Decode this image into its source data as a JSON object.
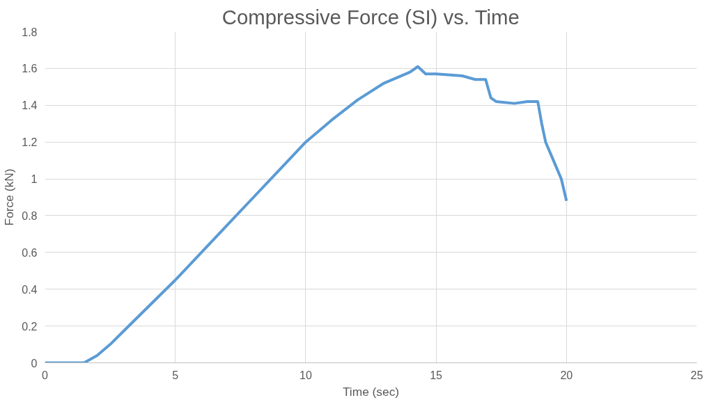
{
  "chart_data": {
    "type": "line",
    "title": "Compressive Force (SI) vs. Time",
    "xlabel": "Time (sec)",
    "ylabel": "Force (kN)",
    "xlim": [
      0,
      25
    ],
    "xticks": [
      0,
      5,
      10,
      15,
      20,
      25
    ],
    "ylim": [
      0,
      1.8
    ],
    "yticks": [
      0,
      0.2,
      0.4,
      0.6,
      0.8,
      1,
      1.2,
      1.4,
      1.6,
      1.8
    ],
    "grid": true,
    "series": [
      {
        "color": "#5b9bd5",
        "x": [
          0,
          1.5,
          2,
          2.5,
          3,
          4,
          5,
          6,
          7,
          8,
          9,
          10,
          11,
          12,
          13,
          14,
          14.3,
          14.6,
          15,
          16,
          16.5,
          16.9,
          17.1,
          17.3,
          18,
          18.5,
          18.9,
          19.05,
          19.2,
          19.5,
          19.8,
          20
        ],
        "values": [
          0,
          0,
          0.04,
          0.1,
          0.17,
          0.31,
          0.45,
          0.6,
          0.75,
          0.9,
          1.05,
          1.2,
          1.32,
          1.43,
          1.52,
          1.58,
          1.61,
          1.57,
          1.57,
          1.56,
          1.54,
          1.54,
          1.44,
          1.42,
          1.41,
          1.42,
          1.42,
          1.3,
          1.2,
          1.1,
          1.0,
          0.88
        ]
      }
    ]
  }
}
